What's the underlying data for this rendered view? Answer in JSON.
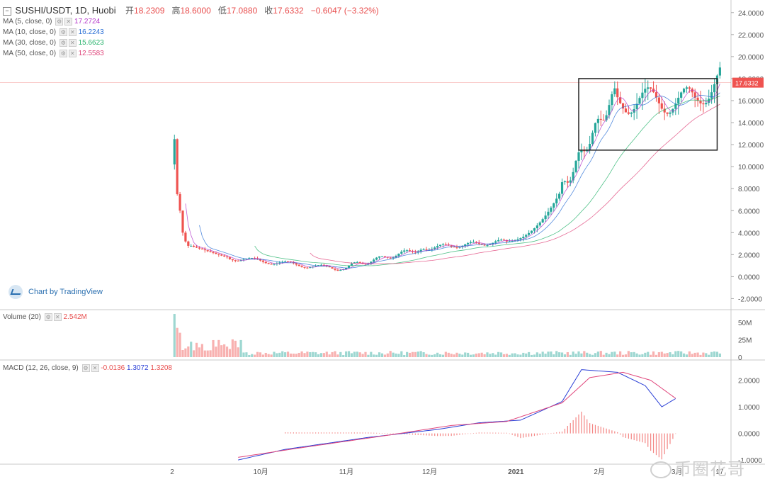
{
  "header": {
    "symbol": "SUSHI/USDT, 1D, Huobi",
    "open_label": "开",
    "open": "18.2309",
    "high_label": "高",
    "high": "18.6000",
    "low_label": "低",
    "low": "17.0880",
    "close_label": "收",
    "close": "17.6332",
    "change": "−0.6047 (−3.32%)"
  },
  "ma_legend": [
    {
      "label": "MA (5, close, 0)",
      "value": "17.2724",
      "color": "#b335c9"
    },
    {
      "label": "MA (10, close, 0)",
      "value": "16.2243",
      "color": "#2a6fd6"
    },
    {
      "label": "MA (30, close, 0)",
      "value": "15.6623",
      "color": "#26b36b"
    },
    {
      "label": "MA (50, close, 0)",
      "value": "12.5583",
      "color": "#e0457b"
    }
  ],
  "volume_legend": {
    "label": "Volume (20)",
    "value": "2.542M"
  },
  "macd_legend": {
    "label": "MACD (12, 26, close, 9)",
    "hist": "-0.0136",
    "macd": "1.3072",
    "signal": "1.3208"
  },
  "watermark": "Chart by TradingView",
  "corner_watermark": "币圈花哥",
  "icons": [
    "collapse-icon",
    "settings-icon",
    "close-icon",
    "tradingview-logo-icon"
  ],
  "colors": {
    "up": "#26a69a",
    "down": "#ef5350",
    "price_line": "#ef5350",
    "box": "#222222"
  },
  "chart_data": [
    {
      "type": "candlestick",
      "title": "SUSHI/USDT, 1D, Huobi",
      "last_price": "17.6332",
      "y_ticks": [
        "24.0000",
        "22.0000",
        "20.0000",
        "18.0000",
        "16.0000",
        "14.0000",
        "12.0000",
        "10.0000",
        "8.0000",
        "6.0000",
        "4.0000",
        "2.0000",
        "0.0000",
        "-2.0000"
      ],
      "ylim": [
        -3.0,
        24.5
      ],
      "x_ticks": [
        {
          "label": "2",
          "index": 0
        },
        {
          "label": "10月",
          "index": 30
        },
        {
          "label": "11月",
          "index": 61
        },
        {
          "label": "12月",
          "index": 91
        },
        {
          "label": "2021",
          "index": 122
        },
        {
          "label": "2月",
          "index": 153
        },
        {
          "label": "3月",
          "index": 181
        },
        {
          "label": "17",
          "index": 197
        }
      ],
      "x_range": [
        -63,
        201
      ],
      "annotation_box": {
        "start_index": 146,
        "end_index": 196,
        "price_low": 11.5,
        "price_high": 18.0
      },
      "series": [
        {
          "name": "MA (5, close, 0)",
          "last": 17.2724
        },
        {
          "name": "MA (10, close, 0)",
          "last": 16.2243
        },
        {
          "name": "MA (30, close, 0)",
          "last": 15.6623
        },
        {
          "name": "MA (50, close, 0)",
          "last": 12.5583
        }
      ]
    },
    {
      "type": "bar",
      "title": "Volume (20)",
      "y_ticks": [
        "50M",
        "25M",
        "0"
      ],
      "ylim": [
        0,
        60
      ],
      "peak_values_M": [
        62,
        42,
        35,
        22,
        18
      ]
    },
    {
      "type": "line",
      "title": "MACD (12, 26, close, 9)",
      "y_ticks": [
        "2.0000",
        "1.0000",
        "0.0000",
        "-1.0000"
      ],
      "ylim": [
        -1.05,
        2.55
      ],
      "last": {
        "macd": 1.3072,
        "signal": 1.3208,
        "hist": -0.0136
      },
      "macd_anchor_points": [
        [
          23,
          -1.0
        ],
        [
          40,
          -0.6
        ],
        [
          70,
          -0.15
        ],
        [
          95,
          0.15
        ],
        [
          110,
          0.4
        ],
        [
          125,
          0.5
        ],
        [
          140,
          1.2
        ],
        [
          147,
          2.4
        ],
        [
          160,
          2.3
        ],
        [
          170,
          1.8
        ],
        [
          176,
          1.0
        ],
        [
          181,
          1.31
        ]
      ],
      "signal_anchor_points": [
        [
          23,
          -0.9
        ],
        [
          45,
          -0.55
        ],
        [
          75,
          -0.1
        ],
        [
          100,
          0.3
        ],
        [
          120,
          0.45
        ],
        [
          140,
          1.15
        ],
        [
          150,
          2.1
        ],
        [
          162,
          2.3
        ],
        [
          172,
          2.0
        ],
        [
          181,
          1.32
        ]
      ]
    }
  ],
  "x_axis_labels": [
    "2",
    "10月",
    "11月",
    "12月",
    "2021",
    "2月",
    "3月",
    "17"
  ]
}
